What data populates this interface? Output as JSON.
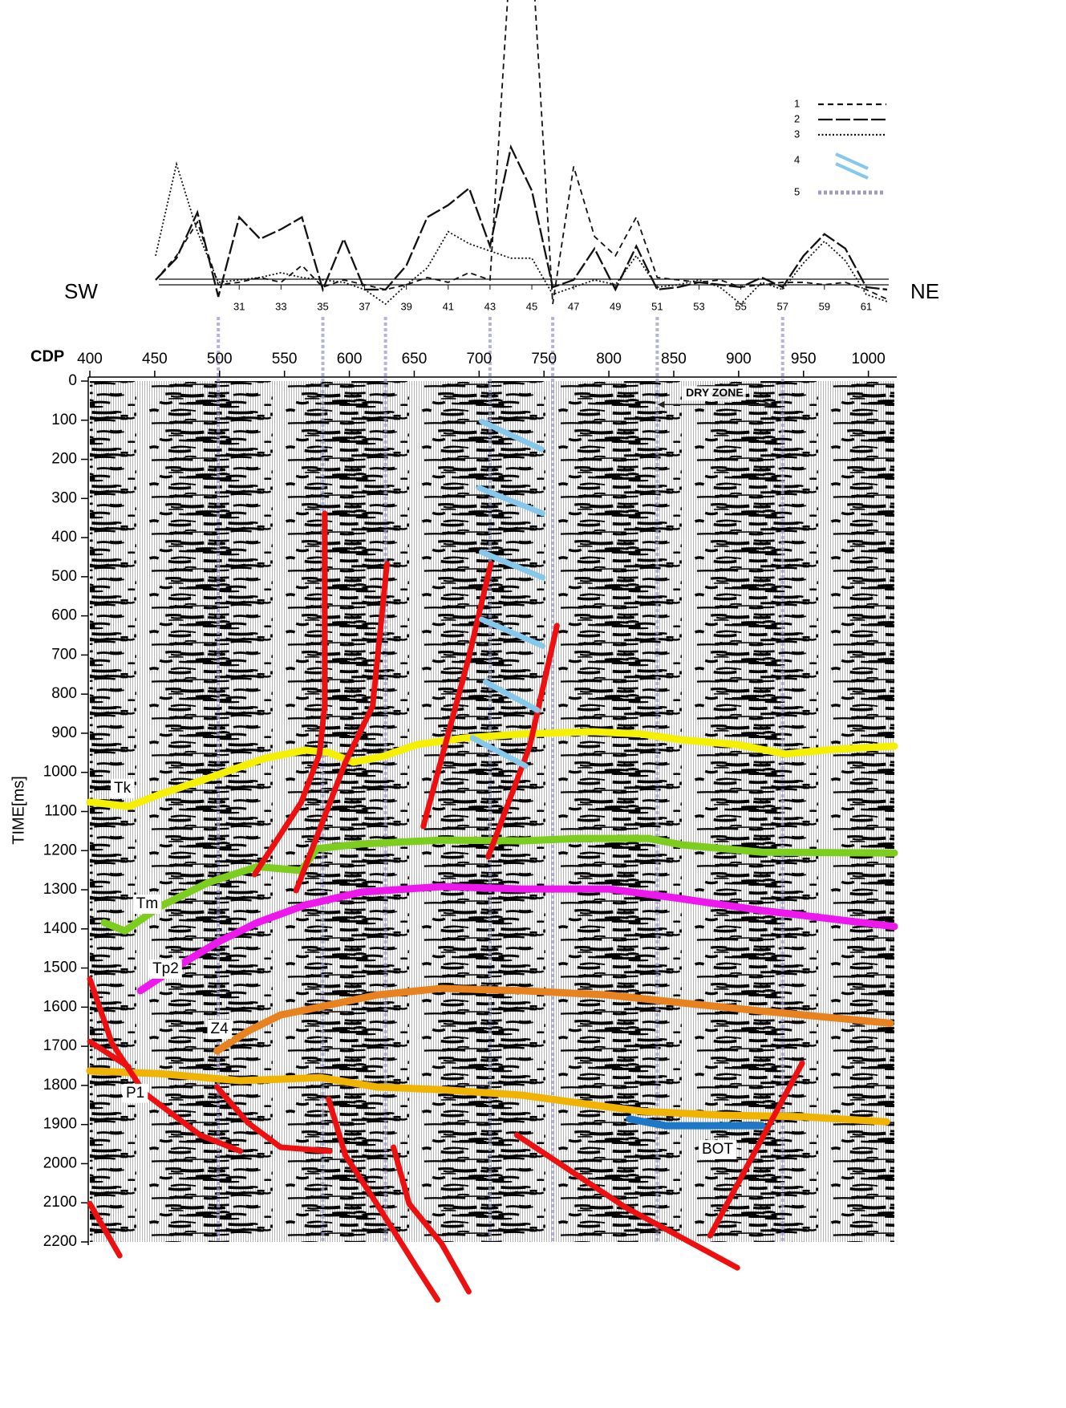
{
  "chart_data": [
    {
      "type": "line",
      "left_label": "SW",
      "right_label": "NE",
      "x": [
        27,
        28,
        29,
        30,
        31,
        32,
        33,
        34,
        35,
        36,
        37,
        38,
        39,
        40,
        41,
        42,
        43,
        44,
        45,
        46,
        47,
        48,
        49,
        50,
        51,
        52,
        53,
        54,
        55,
        56,
        57,
        58,
        59,
        60,
        61,
        62
      ],
      "xlim": [
        27,
        62
      ],
      "xticks": [
        31,
        33,
        35,
        37,
        39,
        41,
        43,
        45,
        47,
        49,
        51,
        53,
        55,
        57,
        59,
        61
      ],
      "ylim": [
        -10,
        118
      ],
      "series": [
        {
          "name": "1",
          "color": "#111111",
          "style": "dashed",
          "values": [
            2,
            12,
            26,
            0,
            1,
            3,
            1,
            8,
            -1,
            2,
            0,
            -2,
            0,
            3,
            1,
            5,
            2,
            140,
            140,
            -8,
            49,
            20,
            12,
            28,
            3,
            2,
            1,
            2,
            -1,
            0,
            1,
            1,
            0,
            1,
            -2,
            -6
          ]
        },
        {
          "name": "2",
          "color": "#111111",
          "style": "long-dash",
          "values": [
            2,
            11,
            30,
            -5,
            28,
            19,
            23,
            28,
            -2,
            19,
            -2,
            -2,
            8,
            28,
            33,
            40,
            16,
            57,
            39,
            -1,
            2,
            15,
            -2,
            16,
            -2,
            -1,
            1,
            0,
            -1,
            3,
            -1,
            12,
            21,
            15,
            -1,
            -2
          ]
        },
        {
          "name": "3",
          "color": "#111111",
          "style": "dotted",
          "values": [
            12,
            50,
            22,
            1,
            2,
            3,
            5,
            3,
            2,
            1,
            -2,
            -8,
            0,
            7,
            22,
            17,
            14,
            11,
            11,
            -4,
            -1,
            2,
            0,
            12,
            -1,
            0,
            2,
            -1,
            -8,
            1,
            -2,
            9,
            18,
            10,
            -4,
            -7
          ]
        }
      ],
      "extra_legend": [
        {
          "name": "4",
          "color": "#86c8ec"
        },
        {
          "name": "5",
          "color": "#9a9ad0"
        }
      ],
      "connectors_x": [
        30,
        35,
        38,
        43,
        46,
        51,
        57
      ]
    },
    {
      "type": "seismic",
      "xlabel": "CDP",
      "ylabel": "TIME[ms]",
      "xlim": [
        400,
        1020
      ],
      "xticks": [
        400,
        450,
        500,
        550,
        600,
        650,
        700,
        750,
        800,
        850,
        900,
        950,
        1000
      ],
      "ylim": [
        0,
        2200
      ],
      "yticks": [
        0,
        100,
        200,
        300,
        400,
        500,
        600,
        700,
        800,
        900,
        1000,
        1100,
        1200,
        1300,
        1400,
        1500,
        1600,
        1700,
        1800,
        1900,
        2000,
        2100,
        2200
      ],
      "horizons": [
        {
          "name": "Tk",
          "color": "#f4f000",
          "x": [
            400,
            430,
            454,
            491,
            535,
            566,
            584,
            603,
            627,
            652,
            689,
            733,
            788,
            825,
            856,
            899,
            936,
            974,
            1020
          ],
          "y": [
            1076,
            1087,
            1056,
            1015,
            964,
            943,
            949,
            974,
            958,
            929,
            912,
            902,
            896,
            902,
            917,
            929,
            953,
            941,
            933
          ]
        },
        {
          "name": "Tm",
          "color": "#7ccd1e",
          "x": [
            411,
            427,
            454,
            491,
            529,
            563,
            575,
            609,
            671,
            733,
            776,
            831,
            856,
            918,
            1020
          ],
          "y": [
            1384,
            1405,
            1343,
            1282,
            1241,
            1251,
            1195,
            1183,
            1173,
            1175,
            1169,
            1169,
            1185,
            1204,
            1206
          ]
        },
        {
          "name": "Tp2",
          "color": "#ee18ee",
          "x": [
            439,
            467,
            498,
            529,
            566,
            609,
            671,
            733,
            800,
            856,
            918,
            1020
          ],
          "y": [
            1558,
            1497,
            1435,
            1384,
            1339,
            1306,
            1292,
            1298,
            1298,
            1323,
            1353,
            1394
          ]
        },
        {
          "name": "Z4",
          "color": "#e8821e",
          "x": [
            498,
            522,
            547,
            578,
            621,
            671,
            733,
            800,
            856,
            918,
            1017
          ],
          "y": [
            1712,
            1661,
            1620,
            1599,
            1569,
            1552,
            1558,
            1569,
            1589,
            1610,
            1641
          ]
        },
        {
          "name": "P1",
          "color": "#f0b400",
          "x": [
            400,
            454,
            516,
            578,
            621,
            671,
            733,
            788,
            825,
            887,
            949,
            1014
          ],
          "y": [
            1763,
            1770,
            1788,
            1780,
            1804,
            1811,
            1825,
            1850,
            1866,
            1876,
            1880,
            1893
          ]
        },
        {
          "name": "BOT",
          "color": "#1e78c8",
          "x": [
            816,
            844,
            918
          ],
          "y": [
            1886,
            1903,
            1903
          ]
        }
      ],
      "fault_color": "#ee1010",
      "faults": [
        {
          "x": [
            581,
            581,
            577,
            563,
            527
          ],
          "y": [
            338,
            830,
            953,
            1076,
            1261
          ]
        },
        {
          "x": [
            629,
            618,
            597,
            559
          ],
          "y": [
            467,
            830,
            974,
            1302
          ]
        },
        {
          "x": [
            709,
            692,
            657
          ],
          "y": [
            467,
            707,
            1138
          ]
        },
        {
          "x": [
            760,
            739,
            707
          ],
          "y": [
            625,
            933,
            1216
          ]
        },
        {
          "x": [
            400,
            417,
            442,
            485,
            516
          ],
          "y": [
            1528,
            1692,
            1819,
            1927,
            1968
          ]
        },
        {
          "x": [
            498,
            522,
            547,
            585
          ],
          "y": [
            1804,
            1896,
            1958,
            1968
          ]
        },
        {
          "x": [
            584,
            597,
            621,
            652,
            668
          ],
          "y": [
            1835,
            1979,
            2102,
            2266,
            2348
          ]
        },
        {
          "x": [
            634,
            646,
            671,
            692
          ],
          "y": [
            1958,
            2102,
            2204,
            2327
          ]
        },
        {
          "x": [
            729,
            813,
            899
          ],
          "y": [
            1927,
            2112,
            2266
          ]
        },
        {
          "x": [
            949,
            878
          ],
          "y": [
            1743,
            2184
          ]
        },
        {
          "x": [
            400,
            423
          ],
          "y": [
            2102,
            2235
          ]
        },
        {
          "x": [
            400,
            430
          ],
          "y": [
            1688,
            1753
          ]
        }
      ],
      "fault_markers": [
        [
          702,
          103,
          748,
          174
        ],
        [
          700,
          273,
          749,
          338
        ],
        [
          702,
          437,
          749,
          502
        ],
        [
          702,
          609,
          749,
          677
        ],
        [
          705,
          769,
          745,
          841
        ],
        [
          695,
          912,
          736,
          984
        ]
      ],
      "annotation": {
        "text": "DRY ZONE",
        "x": [
          838,
          925
        ],
        "y": 60
      }
    }
  ]
}
